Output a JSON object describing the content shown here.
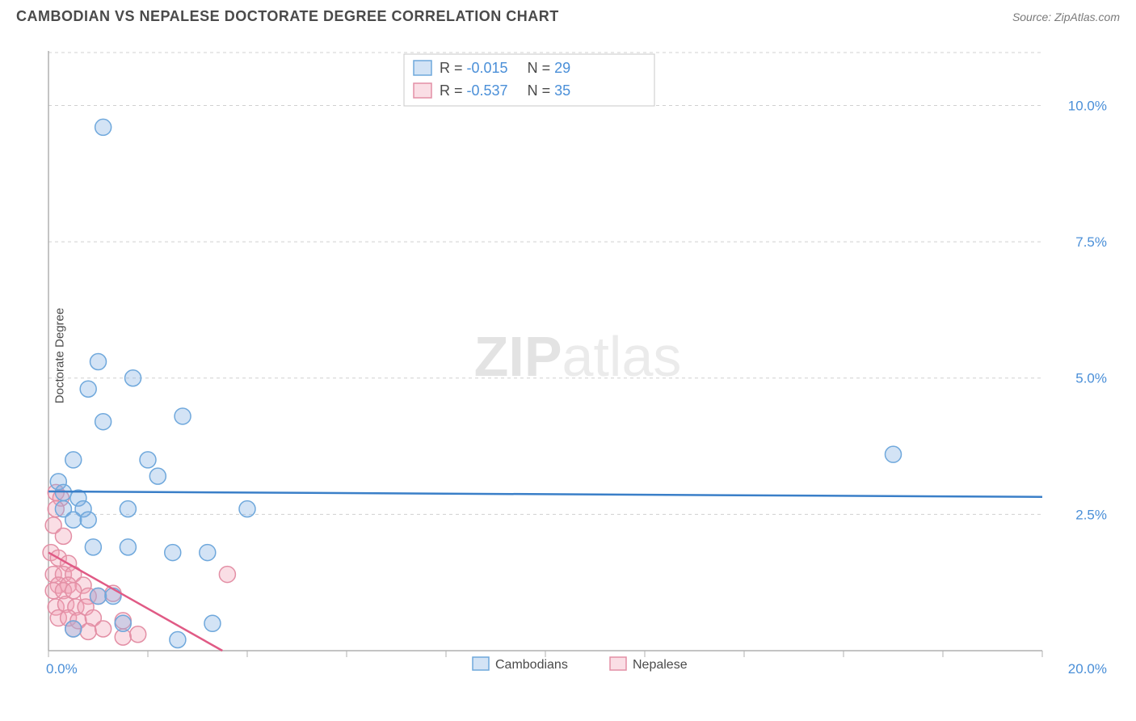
{
  "header": {
    "title": "CAMBODIAN VS NEPALESE DOCTORATE DEGREE CORRELATION CHART",
    "source_label": "Source:",
    "source_value": "ZipAtlas.com"
  },
  "ylabel": "Doctorate Degree",
  "watermark": {
    "bold": "ZIP",
    "rest": "atlas"
  },
  "xlim": [
    0,
    20
  ],
  "ylim": [
    0,
    11
  ],
  "xtick_labels": {
    "left": "0.0%",
    "right": "20.0%"
  },
  "xtick_positions": [
    0,
    2,
    4,
    6,
    8,
    10,
    12,
    14,
    16,
    18,
    20
  ],
  "ytick_labels": [
    "2.5%",
    "5.0%",
    "7.5%",
    "10.0%"
  ],
  "ytick_values": [
    2.5,
    5.0,
    7.5,
    10.0
  ],
  "grid_color": "#d0d0d0",
  "axis_color": "#b0b0b0",
  "bg_color": "#ffffff",
  "series": {
    "cambodians": {
      "label": "Cambodians",
      "color_fill": "rgba(130,175,225,0.35)",
      "color_stroke": "#6fa8dc",
      "trend_color": "#3a7fc8",
      "R": "-0.015",
      "N": "29",
      "marker_radius": 10,
      "trend": {
        "x1": 0,
        "y1": 2.92,
        "x2": 20,
        "y2": 2.82
      },
      "points": [
        [
          1.1,
          9.6
        ],
        [
          1.0,
          5.3
        ],
        [
          1.7,
          5.0
        ],
        [
          0.8,
          4.8
        ],
        [
          1.1,
          4.2
        ],
        [
          2.7,
          4.3
        ],
        [
          0.5,
          3.5
        ],
        [
          2.0,
          3.5
        ],
        [
          2.2,
          3.2
        ],
        [
          17.0,
          3.6
        ],
        [
          0.2,
          3.1
        ],
        [
          0.3,
          2.9
        ],
        [
          0.6,
          2.8
        ],
        [
          0.3,
          2.6
        ],
        [
          0.7,
          2.6
        ],
        [
          1.6,
          2.6
        ],
        [
          4.0,
          2.6
        ],
        [
          0.5,
          2.4
        ],
        [
          0.8,
          2.4
        ],
        [
          0.9,
          1.9
        ],
        [
          1.6,
          1.9
        ],
        [
          2.5,
          1.8
        ],
        [
          3.2,
          1.8
        ],
        [
          1.0,
          1.0
        ],
        [
          1.3,
          1.0
        ],
        [
          1.5,
          0.5
        ],
        [
          3.3,
          0.5
        ],
        [
          0.5,
          0.4
        ],
        [
          2.6,
          0.2
        ]
      ]
    },
    "nepalese": {
      "label": "Nepalese",
      "color_fill": "rgba(240,160,180,0.35)",
      "color_stroke": "#e38fa5",
      "trend_color": "#e05a85",
      "R": "-0.537",
      "N": "35",
      "marker_radius": 10,
      "trend": {
        "x1": 0,
        "y1": 1.8,
        "x2": 3.5,
        "y2": 0
      },
      "points": [
        [
          0.15,
          2.9
        ],
        [
          0.25,
          2.8
        ],
        [
          0.15,
          2.6
        ],
        [
          0.1,
          2.3
        ],
        [
          0.3,
          2.1
        ],
        [
          0.05,
          1.8
        ],
        [
          0.2,
          1.7
        ],
        [
          0.4,
          1.6
        ],
        [
          0.1,
          1.4
        ],
        [
          0.3,
          1.4
        ],
        [
          0.5,
          1.4
        ],
        [
          3.6,
          1.4
        ],
        [
          0.2,
          1.2
        ],
        [
          0.4,
          1.2
        ],
        [
          0.7,
          1.2
        ],
        [
          0.1,
          1.1
        ],
        [
          0.3,
          1.1
        ],
        [
          0.5,
          1.1
        ],
        [
          0.8,
          1.0
        ],
        [
          1.0,
          1.0
        ],
        [
          1.3,
          1.05
        ],
        [
          0.15,
          0.8
        ],
        [
          0.35,
          0.85
        ],
        [
          0.55,
          0.8
        ],
        [
          0.75,
          0.8
        ],
        [
          0.2,
          0.6
        ],
        [
          0.4,
          0.6
        ],
        [
          0.6,
          0.55
        ],
        [
          0.9,
          0.6
        ],
        [
          1.5,
          0.55
        ],
        [
          0.5,
          0.4
        ],
        [
          0.8,
          0.35
        ],
        [
          1.1,
          0.4
        ],
        [
          1.5,
          0.25
        ],
        [
          1.8,
          0.3
        ]
      ]
    }
  },
  "legend_top": {
    "r_label": "R =",
    "n_label": "N ="
  }
}
